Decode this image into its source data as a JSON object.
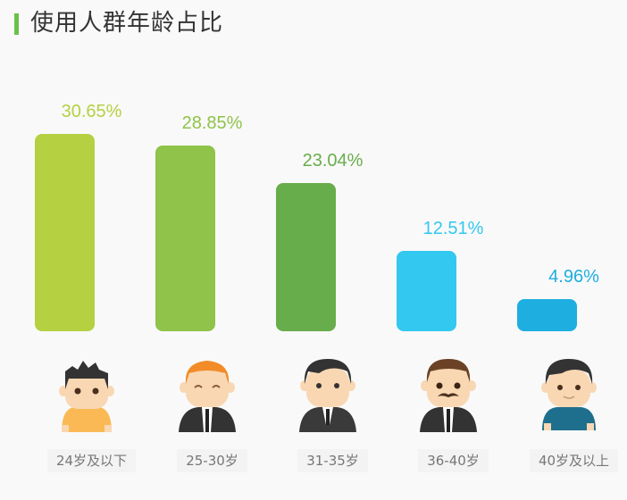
{
  "header": {
    "title": "使用人群年龄占比",
    "accent_color": "#6cc04a"
  },
  "chart_data": {
    "type": "bar",
    "title": "使用人群年龄占比",
    "categories": [
      "24岁及以下",
      "25-30岁",
      "31-35岁",
      "36-40岁",
      "40岁及以上"
    ],
    "values": [
      30.65,
      28.85,
      23.04,
      12.51,
      4.96
    ],
    "labels": [
      "30.65%",
      "28.85%",
      "23.04%",
      "12.51%",
      "4.96%"
    ],
    "colors": [
      "#b5d142",
      "#8fc34a",
      "#68ad4c",
      "#33c8f0",
      "#1eaee0"
    ],
    "xlabel": "",
    "ylabel": "",
    "grid": false,
    "legend": "none",
    "avatars": [
      "young-boy-yellow-shirt-icon",
      "orange-hair-suit-man-icon",
      "dark-hair-suit-man-icon",
      "mustache-suit-man-icon",
      "older-man-blue-shirt-icon"
    ]
  }
}
